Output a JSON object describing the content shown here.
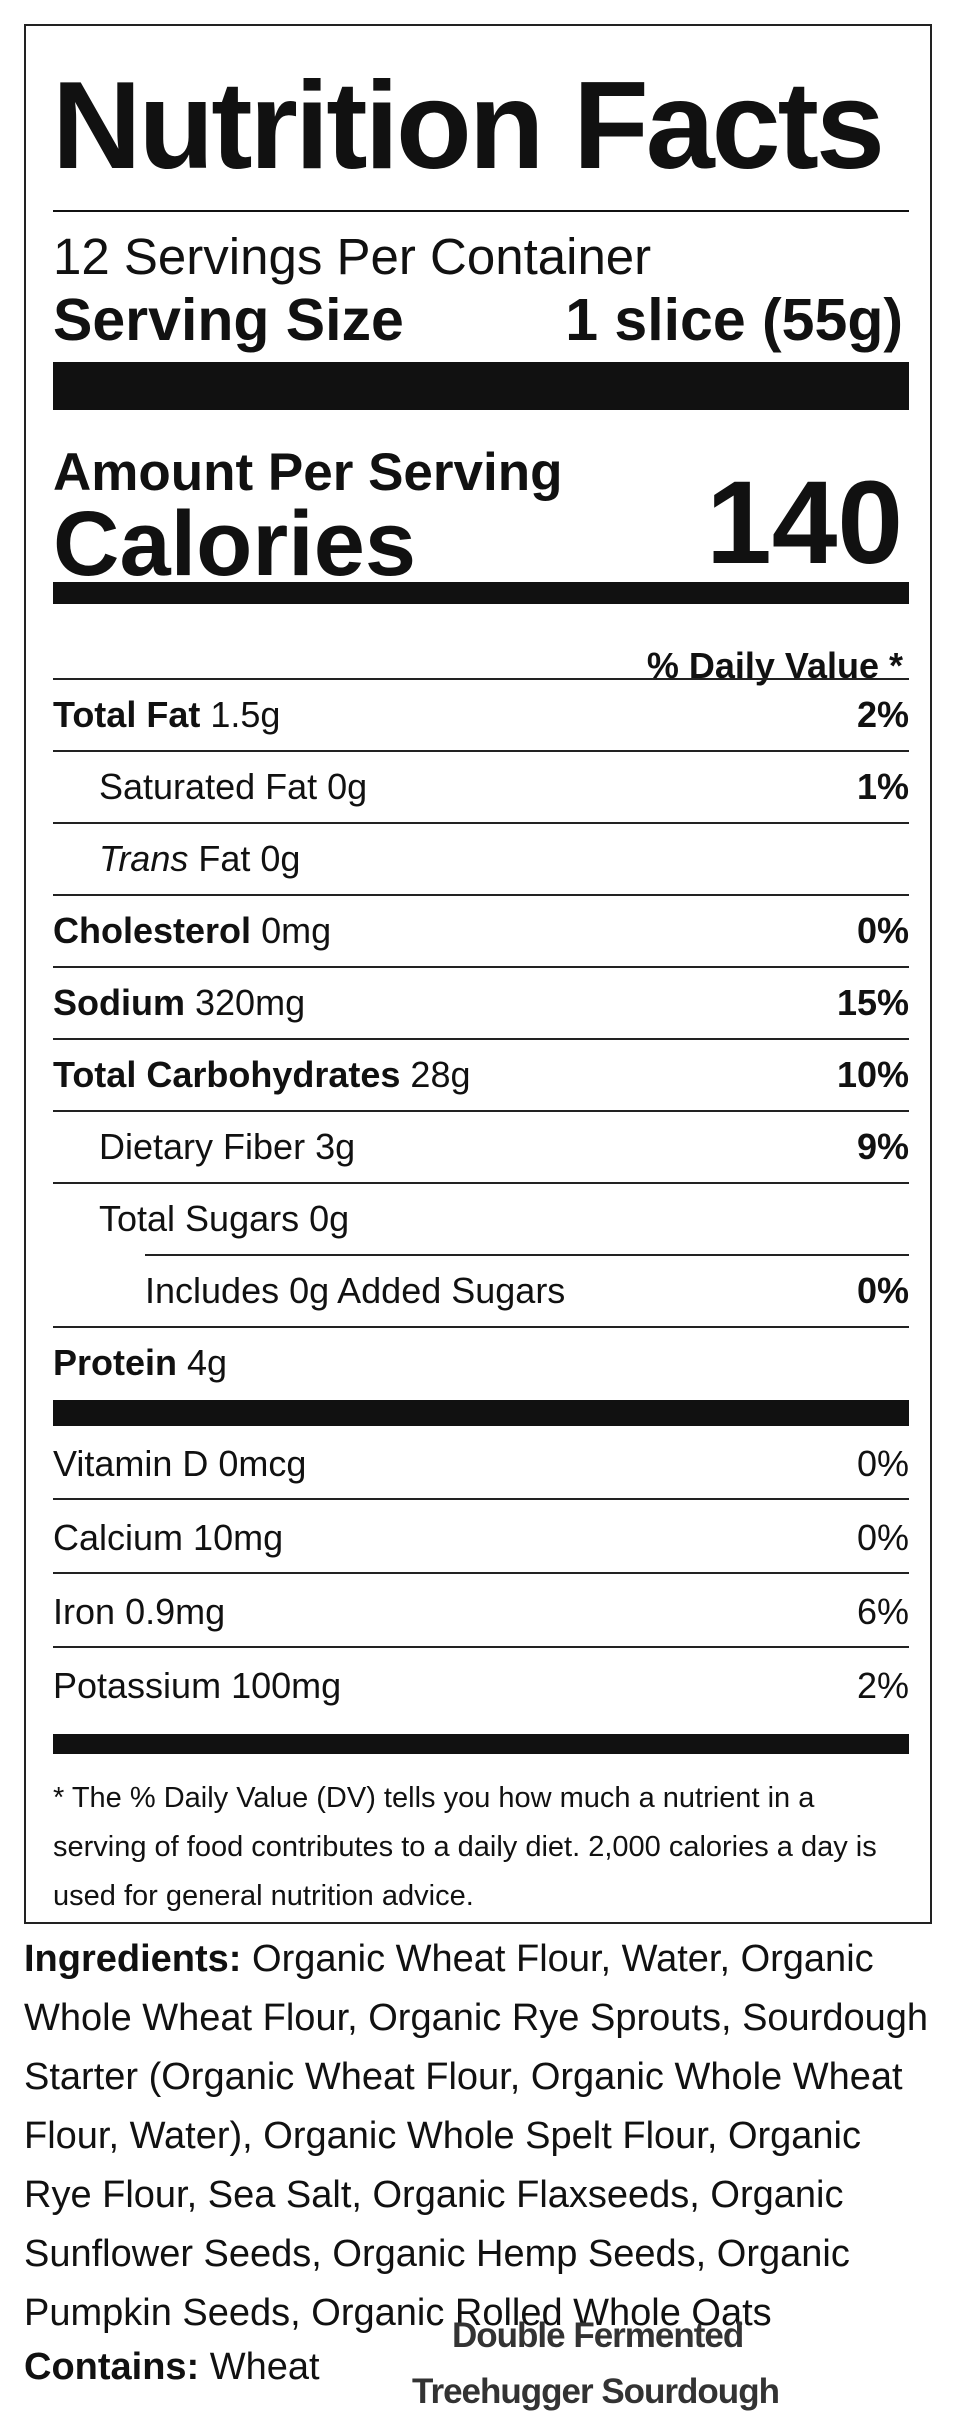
{
  "label": {
    "title": "Nutrition Facts",
    "servings_per_container": "12 Servings Per Container",
    "serving_size_label": "Serving Size",
    "serving_size_value": "1 slice (55g)",
    "amount_per_serving": "Amount Per Serving",
    "calories_label": "Calories",
    "calories_value": "140",
    "daily_value_header": "% Daily Value *",
    "nutrients": [
      {
        "name": "Total Fat",
        "amount": "1.5g",
        "dv": "2%"
      },
      {
        "name": "Saturated Fat",
        "amount": "0g",
        "dv": "1%"
      },
      {
        "name_italic": "Trans",
        "name": "Fat",
        "amount": "0g",
        "dv": ""
      },
      {
        "name": "Cholesterol",
        "amount": "0mg",
        "dv": "0%"
      },
      {
        "name": "Sodium",
        "amount": "320mg",
        "dv": "15%"
      },
      {
        "name": "Total Carbohydrates",
        "amount": "28g",
        "dv": "10%"
      },
      {
        "name": "Dietary Fiber",
        "amount": "3g",
        "dv": "9%"
      },
      {
        "name": "Total Sugars",
        "amount": "0g",
        "dv": ""
      },
      {
        "name": "Includes 0g Added Sugars",
        "dv": "0%"
      },
      {
        "name": "Protein",
        "amount": "4g"
      }
    ],
    "vitamins": [
      {
        "name": "Vitamin D",
        "amount": "0mcg",
        "dv": "0%"
      },
      {
        "name": "Calcium",
        "amount": "10mg",
        "dv": "0%"
      },
      {
        "name": "Iron",
        "amount": "0.9mg",
        "dv": "6%"
      },
      {
        "name": "Potassium",
        "amount": "100mg",
        "dv": "2%"
      }
    ],
    "footnote": "* The % Daily Value (DV) tells you how much a nutrient in a serving of food contributes to a daily diet. 2,000 calories a day is used for general nutrition advice."
  },
  "ingredients": {
    "label": "Ingredients:",
    "text": "Organic Wheat Flour, Water, Organic Whole Wheat Flour, Organic Rye Sprouts, Sourdough Starter (Organic Wheat Flour, Organic Whole Wheat Flour, Water), Organic Whole Spelt Flour, Organic Rye Flour, Sea Salt, Organic Flaxseeds, Organic Sunflower Seeds, Organic Hemp Seeds, Organic Pumpkin Seeds, Organic Rolled Whole Oats"
  },
  "contains": {
    "label": "Contains:",
    "text": "Wheat"
  },
  "product": {
    "line1": "Double Fermented",
    "line2": "Treehugger Sourdough"
  }
}
